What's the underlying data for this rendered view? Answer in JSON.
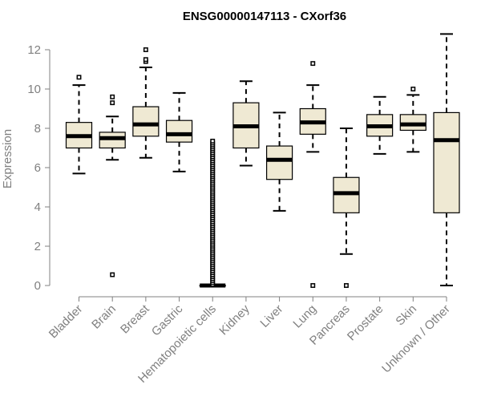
{
  "chart_data": {
    "type": "boxplot",
    "title": "ENSG00000147113 - CXorf36",
    "xlabel": "",
    "ylabel": "Expression",
    "ylim": [
      0,
      12.5
    ],
    "yticks": [
      0,
      2,
      4,
      6,
      8,
      10,
      12
    ],
    "categories": [
      "Bladder",
      "Brain",
      "Breast",
      "Gastric",
      "Hematopoietic cells",
      "Kidney",
      "Liver",
      "Lung",
      "Pancreas",
      "Prostate",
      "Skin",
      "Unknown / Other"
    ],
    "boxes": [
      {
        "category": "Bladder",
        "whisker_low": 5.7,
        "q1": 7.0,
        "median": 7.6,
        "q3": 8.3,
        "whisker_high": 10.2,
        "outliers": [
          10.6
        ]
      },
      {
        "category": "Brain",
        "whisker_low": 6.4,
        "q1": 7.0,
        "median": 7.5,
        "q3": 7.8,
        "whisker_high": 8.6,
        "outliers": [
          9.3,
          9.6,
          0.55
        ]
      },
      {
        "category": "Breast",
        "whisker_low": 6.5,
        "q1": 7.6,
        "median": 8.2,
        "q3": 9.1,
        "whisker_high": 11.1,
        "outliers": [
          11.4,
          11.5,
          12.0
        ]
      },
      {
        "category": "Gastric",
        "whisker_low": 5.8,
        "q1": 7.3,
        "median": 7.7,
        "q3": 8.4,
        "whisker_high": 9.8,
        "outliers": []
      },
      {
        "category": "Hematopoietic cells",
        "whisker_low": 0.0,
        "q1": 0.0,
        "median": 0.0,
        "q3": 0.0,
        "whisker_high": 0.0,
        "outliers_range": [
          0.05,
          7.4
        ]
      },
      {
        "category": "Kidney",
        "whisker_low": 6.1,
        "q1": 7.0,
        "median": 8.1,
        "q3": 9.3,
        "whisker_high": 10.4,
        "outliers": []
      },
      {
        "category": "Liver",
        "whisker_low": 3.8,
        "q1": 5.4,
        "median": 6.4,
        "q3": 7.1,
        "whisker_high": 8.8,
        "outliers": []
      },
      {
        "category": "Lung",
        "whisker_low": 6.8,
        "q1": 7.7,
        "median": 8.3,
        "q3": 9.0,
        "whisker_high": 10.2,
        "outliers": [
          11.3,
          0.0
        ]
      },
      {
        "category": "Pancreas",
        "whisker_low": 1.6,
        "q1": 3.7,
        "median": 4.7,
        "q3": 5.5,
        "whisker_high": 8.0,
        "outliers": [
          0.0
        ]
      },
      {
        "category": "Prostate",
        "whisker_low": 6.7,
        "q1": 7.6,
        "median": 8.1,
        "q3": 8.7,
        "whisker_high": 9.6,
        "outliers": []
      },
      {
        "category": "Skin",
        "whisker_low": 6.8,
        "q1": 7.9,
        "median": 8.2,
        "q3": 8.7,
        "whisker_high": 9.7,
        "outliers": [
          10.0
        ]
      },
      {
        "category": "Unknown / Other",
        "whisker_low": 0.0,
        "q1": 3.7,
        "median": 7.4,
        "q3": 8.8,
        "whisker_high": 12.8,
        "outliers": []
      }
    ],
    "colors": {
      "box_fill": "#efe9d3",
      "box_stroke": "#000000",
      "axis": "#808080",
      "title": "#000000",
      "text": "#808080"
    }
  }
}
